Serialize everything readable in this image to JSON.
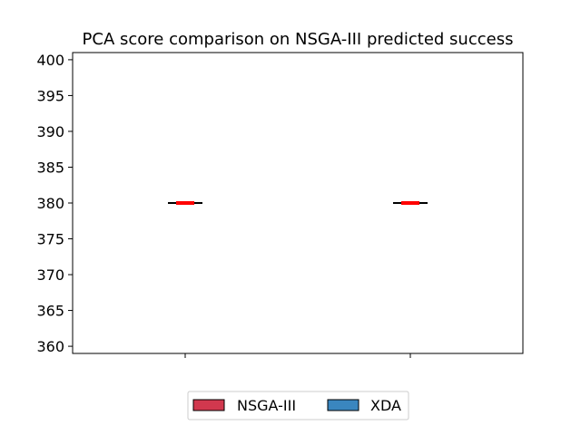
{
  "chart_data": {
    "type": "box",
    "title": "PCA score comparison on NSGA-III predicted success",
    "xlabel": "",
    "ylabel": "",
    "ylim": [
      359,
      401
    ],
    "yticks": [
      360,
      365,
      370,
      375,
      380,
      385,
      390,
      395,
      400
    ],
    "categories": [
      "NSGA-III",
      "XDA"
    ],
    "series": [
      {
        "name": "NSGA-III",
        "color": "#d1384e",
        "values": [
          380
        ],
        "min": 380,
        "q1": 380,
        "median": 380,
        "q3": 380,
        "max": 380
      },
      {
        "name": "XDA",
        "color": "#3a86bf",
        "values": [
          380
        ],
        "min": 380,
        "q1": 380,
        "median": 380,
        "q3": 380,
        "max": 380
      }
    ],
    "median_color": "#ff0000",
    "grid": false,
    "legend": {
      "placement": "bottom-center",
      "entries": [
        "NSGA-III",
        "XDA"
      ]
    }
  }
}
